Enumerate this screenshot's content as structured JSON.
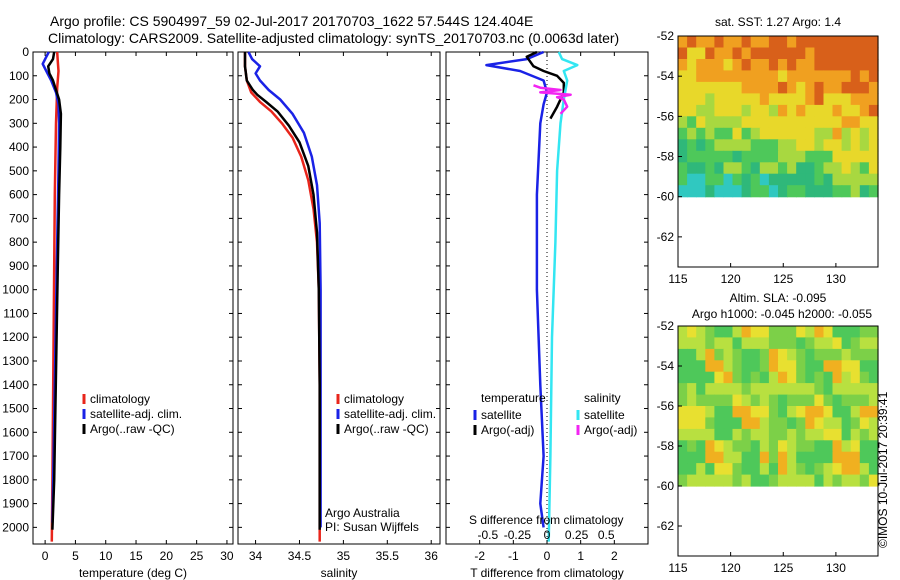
{
  "header": {
    "line1": "Argo profile: CS 5904997_59 02-Jul-2017 20170703_1622 57.544S 124.404E",
    "line2": "Climatology: CARS2009. Satellite-adjusted climatology: synTS_20170703.nc (0.0063d later)"
  },
  "colors": {
    "climatology": "#e8251b",
    "satellite_adj": "#1a22e6",
    "argo": "#000000",
    "salinity_satellite": "#33e6f2",
    "salinity_argo": "#f224f2"
  },
  "credit": "©IMOS 10-Jul-2017 20:39:41",
  "chart_data": [
    {
      "type": "line",
      "title": "",
      "xlabel": "temperature (deg C)",
      "ylabel": "",
      "xlim": [
        -2,
        31
      ],
      "ylim": [
        2070,
        0
      ],
      "xticks": [
        "0",
        "5",
        "10",
        "15",
        "20",
        "25",
        "30"
      ],
      "yticks": [
        "0",
        "100",
        "200",
        "300",
        "400",
        "500",
        "600",
        "700",
        "800",
        "900",
        "1000",
        "1100",
        "1200",
        "1300",
        "1400",
        "1500",
        "1600",
        "1700",
        "1800",
        "1900",
        "2000"
      ],
      "legend": [
        "climatology",
        "satellite-adj. clim.",
        "Argo(..raw -QC)"
      ],
      "legend_position": "lower-left",
      "series": [
        {
          "name": "climatology",
          "color": "#e8251b",
          "x": [
            2.0,
            2.1,
            2.2,
            2.0,
            1.8,
            1.6,
            1.5,
            1.4,
            1.3,
            1.2,
            1.1
          ],
          "y": [
            0,
            40,
            80,
            150,
            300,
            600,
            900,
            1200,
            1500,
            1800,
            2060
          ]
        },
        {
          "name": "satellite-adj. clim.",
          "color": "#1a22e6",
          "x": [
            0.6,
            0.2,
            -0.4,
            0.2,
            1.0,
            1.8,
            2.2,
            2.3,
            2.2,
            2.0,
            1.8,
            1.6,
            1.4,
            1.2
          ],
          "y": [
            0,
            20,
            50,
            80,
            120,
            170,
            220,
            300,
            500,
            800,
            1100,
            1400,
            1700,
            1980
          ]
        },
        {
          "name": "Argo(..raw -QC)",
          "color": "#000000",
          "x": [
            1.5,
            1.3,
            0.5,
            0.7,
            1.3,
            1.8,
            2.3,
            2.6,
            2.5,
            2.3,
            2.1,
            1.9,
            1.7,
            1.5,
            1.2
          ],
          "y": [
            0,
            30,
            60,
            90,
            120,
            160,
            200,
            260,
            400,
            600,
            900,
            1200,
            1500,
            1800,
            2010
          ]
        }
      ]
    },
    {
      "type": "line",
      "title": "",
      "xlabel": "salinity",
      "ylabel": "",
      "xlim": [
        33.8,
        36.1
      ],
      "ylim": [
        2070,
        0
      ],
      "xticks": [
        "34",
        "34.5",
        "35",
        "35.5",
        "36"
      ],
      "legend": [
        "climatology",
        "satellite-adj. clim.",
        "Argo(..raw -QC)"
      ],
      "legend_position": "lower-right",
      "annotation": [
        "Argo Australia",
        "PI: Susan Wijffels"
      ],
      "series": [
        {
          "name": "climatology",
          "color": "#e8251b",
          "x": [
            33.88,
            33.88,
            33.9,
            33.95,
            34.05,
            34.18,
            34.3,
            34.42,
            34.52,
            34.6,
            34.66,
            34.7,
            34.72,
            34.73,
            34.73
          ],
          "y": [
            0,
            60,
            120,
            170,
            210,
            250,
            300,
            360,
            440,
            540,
            660,
            800,
            1000,
            1400,
            2060
          ]
        },
        {
          "name": "satellite-adj. clim.",
          "color": "#1a22e6",
          "x": [
            33.92,
            33.96,
            34.05,
            34.0,
            34.05,
            34.15,
            34.28,
            34.42,
            34.55,
            34.64,
            34.7,
            34.73,
            34.74,
            34.74
          ],
          "y": [
            0,
            30,
            60,
            90,
            120,
            160,
            200,
            260,
            340,
            440,
            560,
            720,
            1000,
            2000
          ]
        },
        {
          "name": "Argo(..raw -QC)",
          "color": "#000000",
          "x": [
            33.88,
            33.88,
            33.9,
            33.97,
            34.02,
            34.12,
            34.25,
            34.38,
            34.5,
            34.6,
            34.66,
            34.7,
            34.72,
            34.73,
            34.73
          ],
          "y": [
            0,
            60,
            120,
            160,
            180,
            210,
            250,
            310,
            380,
            480,
            600,
            760,
            1000,
            1400,
            2010
          ]
        }
      ]
    },
    {
      "type": "line",
      "title": "",
      "xlabel": "T difference from climatology",
      "x2label": "S difference from climatology",
      "ylabel": "",
      "xlim": [
        -3,
        3
      ],
      "ylim": [
        2070,
        0
      ],
      "xticks": [
        "-2",
        "-1",
        "0",
        "1",
        "2"
      ],
      "x2ticks": [
        "-0.5",
        "-0.25",
        "0",
        "0.25",
        "0.5"
      ],
      "legend_groups": [
        {
          "title": "temperature",
          "entries": [
            "satellite",
            "Argo(-adj)"
          ]
        },
        {
          "title": "salinity",
          "entries": [
            "satellite",
            "Argo(-adj)"
          ]
        }
      ],
      "legend_position": "lower-center",
      "series": [
        {
          "name": "temperature satellite",
          "color": "#1a22e6",
          "x": [
            -0.1,
            -0.6,
            -1.8,
            -0.8,
            -0.1,
            0.0,
            -0.1,
            -0.2,
            -0.3,
            -0.3,
            -0.2,
            -0.1,
            -0.2,
            -0.1
          ],
          "y": [
            0,
            30,
            55,
            80,
            120,
            170,
            220,
            300,
            600,
            1000,
            1400,
            1700,
            1900,
            2000
          ]
        },
        {
          "name": "temperature Argo(-adj)",
          "color": "#000000",
          "x": [
            -0.3,
            -0.6,
            -0.4,
            -0.1,
            0.3,
            0.5,
            0.5,
            0.3,
            0.1
          ],
          "y": [
            0,
            20,
            60,
            80,
            100,
            130,
            170,
            230,
            280
          ]
        },
        {
          "name": "salinity satellite",
          "color": "#33e6f2",
          "x": [
            0.35,
            0.45,
            0.9,
            0.5,
            0.6,
            0.5,
            0.4,
            0.3,
            0.25,
            0.15,
            0.1,
            0.05
          ],
          "y": [
            0,
            30,
            55,
            80,
            120,
            200,
            300,
            500,
            800,
            1200,
            1700,
            2060
          ]
        },
        {
          "name": "salinity Argo(-adj)",
          "color": "#f224f2",
          "x": [
            -0.4,
            -0.2,
            0.4,
            -0.2,
            0.7,
            0.3,
            0.5,
            0.6,
            0.4
          ],
          "y": [
            140,
            150,
            160,
            170,
            180,
            190,
            200,
            230,
            260
          ]
        }
      ]
    },
    {
      "type": "heatmap",
      "title": "sat. SST: 1.27 Argo: 1.4",
      "xlim": [
        115,
        134
      ],
      "ylim": [
        -63.5,
        -52
      ],
      "xticks": [
        "115",
        "120",
        "125",
        "130"
      ],
      "yticks": [
        "-52",
        "-54",
        "-56",
        "-58",
        "-60",
        "-62"
      ]
    },
    {
      "type": "heatmap",
      "title": "Altim. SLA: -0.095",
      "subtitle": "Argo h1000: -0.045 h2000: -0.055",
      "xlim": [
        115,
        134
      ],
      "ylim": [
        -63.5,
        -52
      ],
      "xticks": [
        "115",
        "120",
        "125",
        "130"
      ],
      "yticks": [
        "-52",
        "-54",
        "-56",
        "-58",
        "-60",
        "-62"
      ]
    }
  ]
}
